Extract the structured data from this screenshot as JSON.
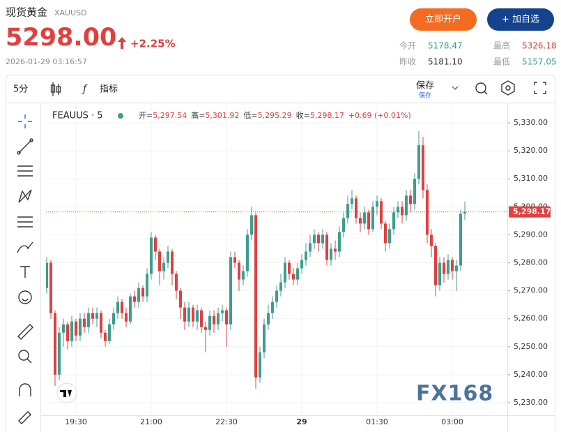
{
  "header": {
    "title": "现货黄金",
    "symbol": "XAUUSD",
    "price": "5298.00",
    "change": "+2.25%",
    "timestamp": "2026-01-29 03:16:57",
    "open_account": "立即开户",
    "add_watch": "+ 加自选"
  },
  "stats": [
    {
      "label": "今开",
      "value": "5178.47"
    },
    {
      "label": "最高",
      "value": "5326.18"
    },
    {
      "label": "昨收",
      "value": "5181.10"
    },
    {
      "label": "最低",
      "value": "5157.05"
    }
  ],
  "toolbar": {
    "interval": "5分",
    "indicators": "指标",
    "save": "保存",
    "save_sub": "保存"
  },
  "chart_data": {
    "type": "candlestick",
    "symbol": "FEAUUS · 5",
    "legend": [
      {
        "label": "开=",
        "value": "5,297.54"
      },
      {
        "label": "高=",
        "value": "5,301.92"
      },
      {
        "label": "低=",
        "value": "5,295.29"
      },
      {
        "label": "收=",
        "value": "5,298.17"
      }
    ],
    "change": "+0.69 (+0.01%)",
    "last_price": {
      "value": 5298.17,
      "label": "5,298.17"
    },
    "watermark": "FX168",
    "up_color": "#3d9e8e",
    "down_color": "#e0403f",
    "grid": true,
    "ylim": [
      5225.5,
      5337
    ],
    "yticks": [
      {
        "value": 5230,
        "label": "5,230.00"
      },
      {
        "value": 5240,
        "label": "5,240.00"
      },
      {
        "value": 5250,
        "label": "5,250.00"
      },
      {
        "value": 5260,
        "label": "5,260.00"
      },
      {
        "value": 5270,
        "label": "5,270.00"
      },
      {
        "value": 5280,
        "label": "5,280.00"
      },
      {
        "value": 5290,
        "label": "5,290.00"
      },
      {
        "value": 5300,
        "label": "5,300.00"
      },
      {
        "value": 5310,
        "label": "5,310.00"
      },
      {
        "value": 5320,
        "label": "5,320.00"
      },
      {
        "value": 5330,
        "label": "5,330.00"
      }
    ],
    "categories": [
      null,
      null,
      null,
      null,
      null,
      null,
      null,
      "19:30",
      null,
      null,
      null,
      null,
      null,
      null,
      null,
      null,
      null,
      null,
      null,
      null,
      null,
      null,
      null,
      null,
      null,
      "21:00",
      null,
      null,
      null,
      null,
      null,
      null,
      null,
      null,
      null,
      null,
      null,
      null,
      null,
      null,
      null,
      null,
      null,
      "22:30",
      null,
      null,
      null,
      null,
      null,
      null,
      null,
      null,
      null,
      null,
      null,
      null,
      null,
      null,
      null,
      null,
      null,
      "29",
      null,
      null,
      null,
      null,
      null,
      null,
      null,
      null,
      null,
      null,
      null,
      null,
      null,
      null,
      null,
      null,
      null,
      "01:30",
      null,
      null,
      null,
      null,
      null,
      null,
      null,
      null,
      null,
      null,
      null,
      null,
      null,
      null,
      null,
      null,
      null,
      "03:00",
      null,
      null,
      null
    ],
    "open": [
      5271,
      5280,
      5262,
      5240,
      5255,
      5258,
      5252,
      5259,
      5254,
      5260,
      5257,
      5262,
      5260,
      5262,
      5255,
      5252,
      5258,
      5262,
      5266,
      5262,
      5259,
      5268,
      5266,
      5271,
      5268,
      5276,
      5289,
      5284,
      5277,
      5280,
      5284,
      5276,
      5270,
      5264,
      5259,
      5264,
      5259,
      5263,
      5257,
      5256,
      5261,
      5258,
      5262,
      5263,
      5258,
      5282,
      5280,
      5274,
      5277,
      5290,
      5297,
      5239,
      5248,
      5258,
      5262,
      5266,
      5270,
      5273,
      5280,
      5276,
      5274,
      5278,
      5281,
      5284,
      5287,
      5290,
      5287,
      5290,
      5281,
      5285,
      5284,
      5291,
      5296,
      5301,
      5303,
      5296,
      5294,
      5298,
      5292,
      5300,
      5302,
      5294,
      5287,
      5292,
      5298,
      5300,
      5297,
      5304,
      5301,
      5310,
      5322,
      5306,
      5290,
      5286,
      5272,
      5280,
      5276,
      5281,
      5277,
      5279,
      5297.54
    ],
    "high": [
      5282,
      5281,
      5263,
      5257,
      5260,
      5259,
      5261,
      5260,
      5262,
      5262,
      5264,
      5264,
      5264,
      5263,
      5256,
      5260,
      5264,
      5268,
      5267,
      5264,
      5269,
      5270,
      5273,
      5272,
      5278,
      5291,
      5290,
      5285,
      5282,
      5286,
      5285,
      5277,
      5271,
      5266,
      5266,
      5265,
      5265,
      5264,
      5259,
      5263,
      5263,
      5264,
      5265,
      5264,
      5284,
      5284,
      5281,
      5279,
      5292,
      5300,
      5298,
      5250,
      5260,
      5265,
      5268,
      5272,
      5276,
      5282,
      5281,
      5278,
      5280,
      5283,
      5287,
      5290,
      5292,
      5291,
      5292,
      5291,
      5287,
      5288,
      5293,
      5298,
      5304,
      5306,
      5304,
      5298,
      5300,
      5299,
      5302,
      5304,
      5303,
      5295,
      5294,
      5300,
      5302,
      5302,
      5306,
      5306,
      5312,
      5327,
      5325,
      5308,
      5292,
      5287,
      5282,
      5282,
      5283,
      5282,
      5281,
      5299,
      5301.92
    ],
    "low": [
      5269,
      5260,
      5236,
      5238,
      5250,
      5249,
      5250,
      5252,
      5252,
      5255,
      5255,
      5258,
      5257,
      5253,
      5250,
      5251,
      5256,
      5260,
      5260,
      5257,
      5258,
      5264,
      5264,
      5266,
      5266,
      5274,
      5281,
      5272,
      5274,
      5278,
      5272,
      5267,
      5260,
      5256,
      5257,
      5257,
      5256,
      5255,
      5248,
      5254,
      5255,
      5256,
      5259,
      5250,
      5256,
      5278,
      5270,
      5272,
      5275,
      5288,
      5235,
      5237,
      5246,
      5256,
      5260,
      5264,
      5268,
      5271,
      5274,
      5272,
      5272,
      5276,
      5279,
      5282,
      5285,
      5284,
      5285,
      5279,
      5279,
      5281,
      5282,
      5289,
      5294,
      5299,
      5294,
      5291,
      5292,
      5290,
      5291,
      5297,
      5292,
      5284,
      5285,
      5290,
      5296,
      5294,
      5295,
      5298,
      5299,
      5308,
      5303,
      5287,
      5282,
      5268,
      5270,
      5273,
      5274,
      5274,
      5270,
      5277,
      5295.29
    ],
    "close": [
      5280,
      5262,
      5240,
      5255,
      5258,
      5252,
      5259,
      5254,
      5260,
      5257,
      5262,
      5260,
      5262,
      5255,
      5252,
      5258,
      5262,
      5266,
      5262,
      5259,
      5268,
      5266,
      5271,
      5268,
      5276,
      5289,
      5284,
      5277,
      5280,
      5284,
      5276,
      5270,
      5264,
      5259,
      5264,
      5259,
      5263,
      5257,
      5256,
      5261,
      5258,
      5262,
      5263,
      5258,
      5282,
      5280,
      5274,
      5277,
      5290,
      5297,
      5239,
      5248,
      5258,
      5262,
      5266,
      5270,
      5273,
      5280,
      5276,
      5274,
      5278,
      5281,
      5284,
      5287,
      5290,
      5287,
      5290,
      5281,
      5285,
      5284,
      5291,
      5296,
      5301,
      5303,
      5296,
      5294,
      5298,
      5292,
      5300,
      5302,
      5294,
      5287,
      5292,
      5298,
      5300,
      5297,
      5304,
      5301,
      5310,
      5322,
      5306,
      5290,
      5286,
      5272,
      5280,
      5276,
      5281,
      5277,
      5279,
      5297.54,
      5298.17
    ]
  }
}
